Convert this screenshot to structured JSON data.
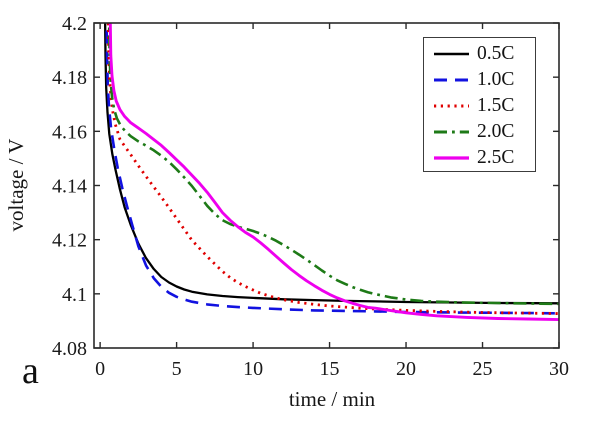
{
  "figure_label": "a",
  "chart_data": {
    "type": "line",
    "title": "",
    "xlabel": "time / min",
    "ylabel": "voltage / V",
    "xlim": [
      -0.4,
      30
    ],
    "ylim": [
      4.08,
      4.2
    ],
    "xticks": [
      0,
      5,
      10,
      15,
      20,
      25,
      30
    ],
    "xtick_labels": [
      "0",
      "5",
      "10",
      "15",
      "20",
      "25",
      "30"
    ],
    "yticks": [
      4.08,
      4.1,
      4.12,
      4.14,
      4.16,
      4.18,
      4.2
    ],
    "ytick_labels": [
      "4.08",
      "4.1",
      "4.12",
      "4.14",
      "4.16",
      "4.18",
      "4.2"
    ],
    "grid": false,
    "legend_position": "top-right",
    "series": [
      {
        "name": "0.5C",
        "color": "#000000",
        "style": "solid",
        "width": 2.3,
        "points": [
          [
            0.32,
            4.205
          ],
          [
            0.35,
            4.188
          ],
          [
            0.4,
            4.176
          ],
          [
            0.48,
            4.167
          ],
          [
            0.6,
            4.159
          ],
          [
            0.8,
            4.1515
          ],
          [
            1.0,
            4.146
          ],
          [
            1.3,
            4.1385
          ],
          [
            1.6,
            4.132
          ],
          [
            2.0,
            4.1255
          ],
          [
            2.5,
            4.1185
          ],
          [
            3.0,
            4.1132
          ],
          [
            3.5,
            4.1092
          ],
          [
            4.0,
            4.1062
          ],
          [
            4.5,
            4.1042
          ],
          [
            5.0,
            4.1027
          ],
          [
            5.5,
            4.1016
          ],
          [
            6.0,
            4.1008
          ],
          [
            7.0,
            4.0998
          ],
          [
            8.0,
            4.0992
          ],
          [
            9.0,
            4.0988
          ],
          [
            10,
            4.0985
          ],
          [
            12,
            4.098
          ],
          [
            14,
            4.0977
          ],
          [
            16,
            4.0974
          ],
          [
            18,
            4.0972
          ],
          [
            20,
            4.097
          ],
          [
            23,
            4.0968
          ],
          [
            26,
            4.0966
          ],
          [
            30,
            4.0965
          ]
        ]
      },
      {
        "name": "1.0C",
        "color": "#1212e0",
        "style": "dashed",
        "width": 2.6,
        "points": [
          [
            0.42,
            4.205
          ],
          [
            0.45,
            4.188
          ],
          [
            0.5,
            4.177
          ],
          [
            0.58,
            4.169
          ],
          [
            0.72,
            4.161
          ],
          [
            0.92,
            4.1535
          ],
          [
            1.15,
            4.1465
          ],
          [
            1.45,
            4.139
          ],
          [
            1.75,
            4.1325
          ],
          [
            2.1,
            4.1255
          ],
          [
            2.5,
            4.1175
          ],
          [
            3.0,
            4.1105
          ],
          [
            3.5,
            4.1058
          ],
          [
            4.0,
            4.1026
          ],
          [
            4.5,
            4.1004
          ],
          [
            5.0,
            4.0989
          ],
          [
            5.5,
            4.0979
          ],
          [
            6.0,
            4.0971
          ],
          [
            7.0,
            4.0961
          ],
          [
            8.0,
            4.0955
          ],
          [
            9.0,
            4.0951
          ],
          [
            10,
            4.0948
          ],
          [
            12,
            4.0943
          ],
          [
            14,
            4.0939
          ],
          [
            16,
            4.0937
          ],
          [
            18,
            4.0935
          ],
          [
            20,
            4.0933
          ],
          [
            23,
            4.0931
          ],
          [
            26,
            4.093
          ],
          [
            30,
            4.0928
          ]
        ]
      },
      {
        "name": "1.5C",
        "color": "#e00000",
        "style": "dotted",
        "width": 2.8,
        "points": [
          [
            0.52,
            4.205
          ],
          [
            0.56,
            4.188
          ],
          [
            0.62,
            4.179
          ],
          [
            0.72,
            4.1718
          ],
          [
            0.85,
            4.1665
          ],
          [
            1.0,
            4.1625
          ],
          [
            1.3,
            4.157
          ],
          [
            2.0,
            4.1514
          ],
          [
            2.6,
            4.1465
          ],
          [
            3.2,
            4.1418
          ],
          [
            3.9,
            4.1365
          ],
          [
            4.5,
            4.1318
          ],
          [
            5.2,
            4.1262
          ],
          [
            6.0,
            4.1198
          ],
          [
            6.5,
            4.1168
          ],
          [
            7.0,
            4.1138
          ],
          [
            7.5,
            4.111
          ],
          [
            8.0,
            4.1083
          ],
          [
            8.5,
            4.106
          ],
          [
            9.0,
            4.1042
          ],
          [
            9.5,
            4.1027
          ],
          [
            10,
            4.1014
          ],
          [
            10.5,
            4.1002
          ],
          [
            11,
            4.0993
          ],
          [
            11.5,
            4.0985
          ],
          [
            12,
            4.0978
          ],
          [
            13,
            4.0968
          ],
          [
            14,
            4.0961
          ],
          [
            15,
            4.0955
          ],
          [
            16,
            4.0951
          ],
          [
            17,
            4.0947
          ],
          [
            18,
            4.0944
          ],
          [
            20,
            4.0939
          ],
          [
            22,
            4.0935
          ],
          [
            25,
            4.0931
          ],
          [
            30,
            4.0927
          ]
        ]
      },
      {
        "name": "2.0C",
        "color": "#1e7a17",
        "style": "dashdot",
        "width": 2.6,
        "points": [
          [
            0.58,
            4.205
          ],
          [
            0.62,
            4.188
          ],
          [
            0.68,
            4.179
          ],
          [
            0.78,
            4.1728
          ],
          [
            0.92,
            4.168
          ],
          [
            1.1,
            4.1648
          ],
          [
            1.35,
            4.162
          ],
          [
            1.65,
            4.16
          ],
          [
            2.0,
            4.1582
          ],
          [
            2.5,
            4.1563
          ],
          [
            3.0,
            4.1547
          ],
          [
            3.5,
            4.153
          ],
          [
            4.0,
            4.151
          ],
          [
            4.5,
            4.1487
          ],
          [
            5.0,
            4.146
          ],
          [
            5.5,
            4.143
          ],
          [
            6.0,
            4.1398
          ],
          [
            6.5,
            4.1362
          ],
          [
            7.0,
            4.1325
          ],
          [
            7.5,
            4.1295
          ],
          [
            8.0,
            4.1272
          ],
          [
            8.5,
            4.1258
          ],
          [
            9.0,
            4.1248
          ],
          [
            9.5,
            4.124
          ],
          [
            10,
            4.1232
          ],
          [
            10.5,
            4.1222
          ],
          [
            11,
            4.121
          ],
          [
            11.5,
            4.1196
          ],
          [
            12,
            4.118
          ],
          [
            12.5,
            4.1163
          ],
          [
            13,
            4.1145
          ],
          [
            13.5,
            4.1126
          ],
          [
            14,
            4.1106
          ],
          [
            14.5,
            4.1086
          ],
          [
            15,
            4.1067
          ],
          [
            15.5,
            4.105
          ],
          [
            16,
            4.1037
          ],
          [
            16.5,
            4.1025
          ],
          [
            17,
            4.1015
          ],
          [
            17.5,
            4.1006
          ],
          [
            18,
            4.0999
          ],
          [
            19,
            4.0987
          ],
          [
            20,
            4.0979
          ],
          [
            21,
            4.0974
          ],
          [
            22,
            4.0971
          ],
          [
            23,
            4.0969
          ],
          [
            25,
            4.0967
          ],
          [
            27,
            4.0965
          ],
          [
            30,
            4.0963
          ]
        ]
      },
      {
        "name": "2.5C",
        "color": "#ee00ee",
        "style": "solid",
        "width": 2.9,
        "points": [
          [
            0.65,
            4.205
          ],
          [
            0.7,
            4.188
          ],
          [
            0.78,
            4.1805
          ],
          [
            0.9,
            4.175
          ],
          [
            1.05,
            4.1712
          ],
          [
            1.3,
            4.168
          ],
          [
            1.6,
            4.1655
          ],
          [
            2.0,
            4.1632
          ],
          [
            2.5,
            4.1612
          ],
          [
            3.0,
            4.1592
          ],
          [
            3.5,
            4.157
          ],
          [
            4.0,
            4.1548
          ],
          [
            4.5,
            4.1522
          ],
          [
            5.0,
            4.1495
          ],
          [
            5.5,
            4.1468
          ],
          [
            6.0,
            4.1438
          ],
          [
            6.5,
            4.1408
          ],
          [
            7.0,
            4.1375
          ],
          [
            7.5,
            4.1338
          ],
          [
            8.0,
            4.13
          ],
          [
            8.5,
            4.1272
          ],
          [
            9.0,
            4.1248
          ],
          [
            9.5,
            4.1227
          ],
          [
            10,
            4.121
          ],
          [
            10.5,
            4.1188
          ],
          [
            11,
            4.1164
          ],
          [
            11.5,
            4.1139
          ],
          [
            12,
            4.1114
          ],
          [
            12.5,
            4.109
          ],
          [
            13,
            4.1068
          ],
          [
            13.5,
            4.1048
          ],
          [
            14,
            4.103
          ],
          [
            14.5,
            4.1013
          ],
          [
            15,
            4.0998
          ],
          [
            15.5,
            4.0985
          ],
          [
            16,
            4.0974
          ],
          [
            16.5,
            4.0965
          ],
          [
            17,
            4.0957
          ],
          [
            17.5,
            4.095
          ],
          [
            18,
            4.0947
          ],
          [
            19,
            4.0938
          ],
          [
            20,
            4.093
          ],
          [
            21,
            4.0924
          ],
          [
            22,
            4.0919
          ],
          [
            24,
            4.0913
          ],
          [
            26,
            4.0909
          ],
          [
            28,
            4.0907
          ],
          [
            30,
            4.0905
          ]
        ]
      }
    ]
  },
  "legend": {
    "items": [
      {
        "label": "0.5C"
      },
      {
        "label": "1.0C"
      },
      {
        "label": "1.5C"
      },
      {
        "label": "2.0C"
      },
      {
        "label": "2.5C"
      }
    ]
  }
}
